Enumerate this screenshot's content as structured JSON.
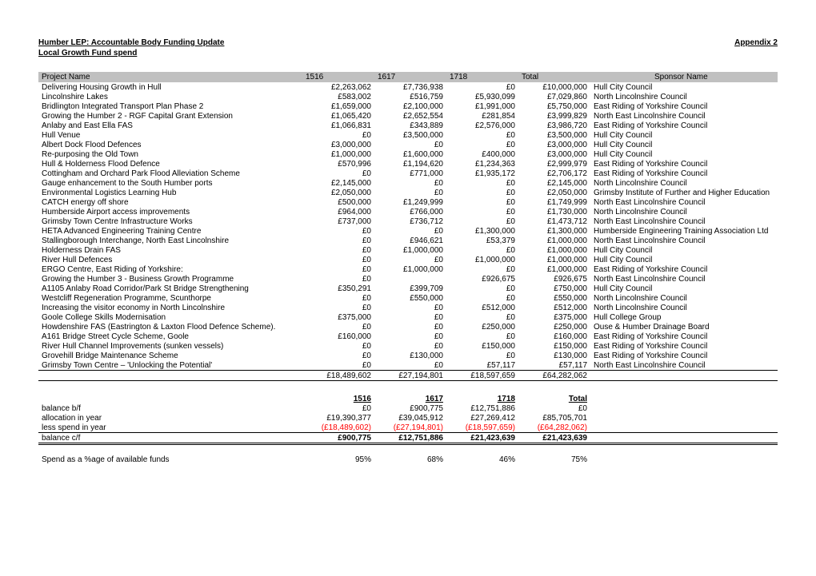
{
  "header": {
    "title": "Humber LEP: Accountable Body Funding Update",
    "subtitle": "Local Growth Fund spend",
    "appendix": "Appendix 2"
  },
  "columns": [
    "Project Name",
    "1516",
    "1617",
    "1718",
    "Total",
    "Sponsor Name"
  ],
  "rows": [
    {
      "name": "Delivering Housing Growth in Hull",
      "c1516": "£2,263,062",
      "c1617": "£7,736,938",
      "c1718": "£0",
      "total": "£10,000,000",
      "sponsor": "Hull City Council"
    },
    {
      "name": "Lincolnshire Lakes",
      "c1516": "£583,002",
      "c1617": "£516,759",
      "c1718": "£5,930,099",
      "total": "£7,029,860",
      "sponsor": "North Lincolnshire Council"
    },
    {
      "name": "Bridlington Integrated Transport Plan Phase 2",
      "c1516": "£1,659,000",
      "c1617": "£2,100,000",
      "c1718": "£1,991,000",
      "total": "£5,750,000",
      "sponsor": "East Riding of Yorkshire Council"
    },
    {
      "name": "Growing the Humber 2 - RGF Capital Grant Extension",
      "c1516": "£1,065,420",
      "c1617": "£2,652,554",
      "c1718": "£281,854",
      "total": "£3,999,829",
      "sponsor": "North East Lincolnshire Council"
    },
    {
      "name": "Anlaby and East Ella FAS",
      "c1516": "£1,066,831",
      "c1617": "£343,889",
      "c1718": "£2,576,000",
      "total": "£3,986,720",
      "sponsor": "East Riding of Yorkshire Council"
    },
    {
      "name": "Hull Venue",
      "c1516": "£0",
      "c1617": "£3,500,000",
      "c1718": "£0",
      "total": "£3,500,000",
      "sponsor": "Hull City Council"
    },
    {
      "name": "Albert Dock Flood Defences",
      "c1516": "£3,000,000",
      "c1617": "£0",
      "c1718": "£0",
      "total": "£3,000,000",
      "sponsor": "Hull City Council"
    },
    {
      "name": "Re-purposing the Old Town",
      "c1516": "£1,000,000",
      "c1617": "£1,600,000",
      "c1718": "£400,000",
      "total": "£3,000,000",
      "sponsor": "Hull City Council"
    },
    {
      "name": "Hull & Holderness Flood Defence",
      "c1516": "£570,996",
      "c1617": "£1,194,620",
      "c1718": "£1,234,363",
      "total": "£2,999,979",
      "sponsor": "East Riding of Yorkshire Council"
    },
    {
      "name": "Cottingham and Orchard Park Flood Alleviation Scheme",
      "c1516": "£0",
      "c1617": "£771,000",
      "c1718": "£1,935,172",
      "total": "£2,706,172",
      "sponsor": "East Riding of Yorkshire Council"
    },
    {
      "name": "Gauge enhancement to the South Humber ports",
      "c1516": "£2,145,000",
      "c1617": "£0",
      "c1718": "£0",
      "total": "£2,145,000",
      "sponsor": "North Lincolnshire Council"
    },
    {
      "name": "Environmental Logistics Learning Hub",
      "c1516": "£2,050,000",
      "c1617": "£0",
      "c1718": "£0",
      "total": "£2,050,000",
      "sponsor": "Grimsby Institute of Further and Higher Education"
    },
    {
      "name": "CATCH energy off shore",
      "c1516": "£500,000",
      "c1617": "£1,249,999",
      "c1718": "£0",
      "total": "£1,749,999",
      "sponsor": "North East Lincolnshire Council"
    },
    {
      "name": "Humberside Airport access improvements",
      "c1516": "£964,000",
      "c1617": "£766,000",
      "c1718": "£0",
      "total": "£1,730,000",
      "sponsor": "North Lincolnshire Council"
    },
    {
      "name": "Grimsby Town Centre Infrastructure Works",
      "c1516": "£737,000",
      "c1617": "£736,712",
      "c1718": "£0",
      "total": "£1,473,712",
      "sponsor": "North East Lincolnshire Council"
    },
    {
      "name": "HETA Advanced Engineering Training Centre",
      "c1516": "£0",
      "c1617": "£0",
      "c1718": "£1,300,000",
      "total": "£1,300,000",
      "sponsor": "Humberside Engineering Training Association Ltd"
    },
    {
      "name": "Stallingborough Interchange, North East Lincolnshire",
      "c1516": "£0",
      "c1617": "£946,621",
      "c1718": "£53,379",
      "total": "£1,000,000",
      "sponsor": "North East Lincolnshire Council"
    },
    {
      "name": "Holderness Drain FAS",
      "c1516": "£0",
      "c1617": "£1,000,000",
      "c1718": "£0",
      "total": "£1,000,000",
      "sponsor": "Hull City Council"
    },
    {
      "name": "River Hull Defences",
      "c1516": "£0",
      "c1617": "£0",
      "c1718": "£1,000,000",
      "total": "£1,000,000",
      "sponsor": "Hull City Council"
    },
    {
      "name": "ERGO Centre, East Riding of Yorkshire:",
      "c1516": "£0",
      "c1617": "£1,000,000",
      "c1718": "£0",
      "total": "£1,000,000",
      "sponsor": "East Riding of Yorkshire Council"
    },
    {
      "name": "Growing the Humber 3 - Business Growth Programme",
      "c1516": "£0",
      "c1617": "",
      "c1718": "£926,675",
      "total": "£926,675",
      "sponsor": "North East Lincolnshire Council"
    },
    {
      "name": "A1105 Anlaby Road Corridor/Park St Bridge Strengthening",
      "c1516": "£350,291",
      "c1617": "£399,709",
      "c1718": "£0",
      "total": "£750,000",
      "sponsor": "Hull City Council"
    },
    {
      "name": "Westcliff Regeneration Programme, Scunthorpe",
      "c1516": "£0",
      "c1617": "£550,000",
      "c1718": "£0",
      "total": "£550,000",
      "sponsor": "North Lincolnshire Council"
    },
    {
      "name": "Increasing the visitor economy in North Lincolnshire",
      "c1516": "£0",
      "c1617": "£0",
      "c1718": "£512,000",
      "total": "£512,000",
      "sponsor": "North Lincolnshire Council"
    },
    {
      "name": "Goole College Skills Modernisation",
      "c1516": "£375,000",
      "c1617": "£0",
      "c1718": "£0",
      "total": "£375,000",
      "sponsor": "Hull College Group"
    },
    {
      "name": "Howdenshire FAS (Eastrington & Laxton Flood Defence Scheme).",
      "c1516": "£0",
      "c1617": "£0",
      "c1718": "£250,000",
      "total": "£250,000",
      "sponsor": "Ouse & Humber Drainage Board"
    },
    {
      "name": "A161 Bridge Street Cycle Scheme, Goole",
      "c1516": "£160,000",
      "c1617": "£0",
      "c1718": "£0",
      "total": "£160,000",
      "sponsor": "East Riding of Yorkshire Council"
    },
    {
      "name": "River Hull Channel Improvements (sunken vessels)",
      "c1516": "£0",
      "c1617": "£0",
      "c1718": "£150,000",
      "total": "£150,000",
      "sponsor": "East Riding of Yorkshire Council"
    },
    {
      "name": "Grovehill Bridge Maintenance Scheme",
      "c1516": "£0",
      "c1617": "£130,000",
      "c1718": "£0",
      "total": "£130,000",
      "sponsor": "East Riding of Yorkshire Council"
    },
    {
      "name": "Grimsby Town Centre  – 'Unlocking the Potential'",
      "c1516": "£0",
      "c1617": "£0",
      "c1718": "£57,117",
      "total": "£57,117",
      "sponsor": "North East Lincolnshire Council"
    }
  ],
  "projTotals": {
    "c1516": "£18,489,602",
    "c1617": "£27,194,801",
    "c1718": "£18,597,659",
    "total": "£64,282,062"
  },
  "summaryHeader": {
    "c1516": "1516",
    "c1617": "1617",
    "c1718": "1718",
    "total": "Total"
  },
  "summary": [
    {
      "label": "balance b/f",
      "c1516": "£0",
      "c1617": "£900,775",
      "c1718": "£12,751,886",
      "total": "£0",
      "neg": false
    },
    {
      "label": "allocation in year",
      "c1516": "£19,390,377",
      "c1617": "£39,045,912",
      "c1718": "£27,269,412",
      "total": "£85,705,701",
      "neg": false
    },
    {
      "label": "less spend in year",
      "c1516": "(£18,489,602)",
      "c1617": "(£27,194,801)",
      "c1718": "(£18,597,659)",
      "total": "(£64,282,062)",
      "neg": true
    }
  ],
  "balanceCf": {
    "label": "balance c/f",
    "c1516": "£900,775",
    "c1617": "£12,751,886",
    "c1718": "£21,423,639",
    "total": "£21,423,639"
  },
  "pct": {
    "label": "Spend as a %age of available funds",
    "c1516": "95%",
    "c1617": "68%",
    "c1718": "46%",
    "total": "75%"
  }
}
